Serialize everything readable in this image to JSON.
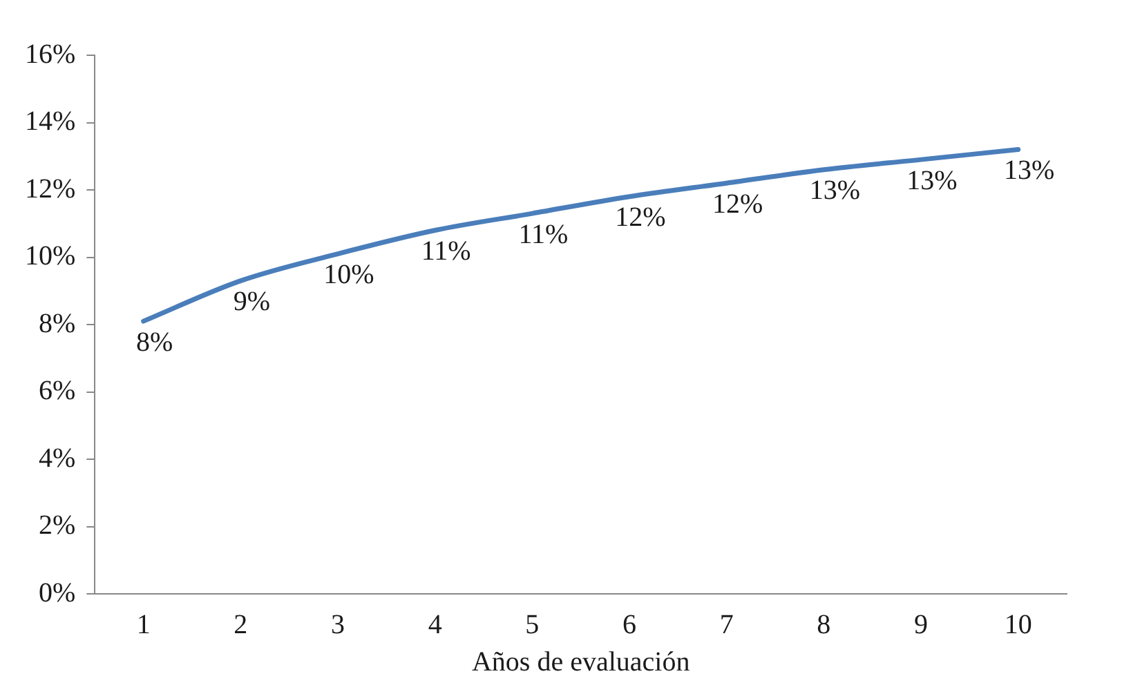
{
  "chart_data": {
    "type": "line",
    "xlabel": "Años de evaluación",
    "categories": [
      "1",
      "2",
      "3",
      "4",
      "5",
      "6",
      "7",
      "8",
      "9",
      "10"
    ],
    "series": [
      {
        "color": "#4a7ebb",
        "values": [
          8.1,
          9.3,
          10.1,
          10.8,
          11.3,
          11.8,
          12.2,
          12.6,
          12.9,
          13.2
        ],
        "value_labels": [
          "8%",
          "9%",
          "10%",
          "11%",
          "11%",
          "12%",
          "12%",
          "13%",
          "13%",
          "13%"
        ]
      }
    ],
    "ylim": [
      0,
      16
    ],
    "yticks": [
      {
        "value": 0,
        "label": "0%"
      },
      {
        "value": 2,
        "label": "2%"
      },
      {
        "value": 4,
        "label": "4%"
      },
      {
        "value": 6,
        "label": "6%"
      },
      {
        "value": 8,
        "label": "8%"
      },
      {
        "value": 10,
        "label": "10%"
      },
      {
        "value": 12,
        "label": "12%"
      },
      {
        "value": 14,
        "label": "14%"
      },
      {
        "value": 16,
        "label": "16%"
      }
    ],
    "grid": false,
    "legend": false,
    "marker": "none",
    "line_style": "solid"
  }
}
